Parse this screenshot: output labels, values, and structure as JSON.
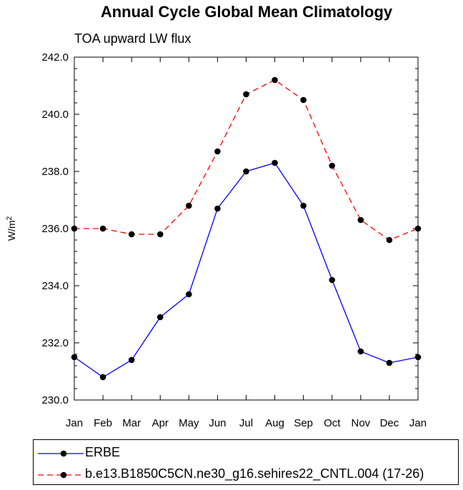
{
  "chart_data": {
    "type": "line",
    "title": "Annual Cycle Global Mean Climatology",
    "subtitle": "TOA upward LW flux",
    "ylabel": "W/m",
    "ylabel_sup": "2",
    "categories": [
      "Jan",
      "Feb",
      "Mar",
      "Apr",
      "May",
      "Jun",
      "Jul",
      "Aug",
      "Sep",
      "Oct",
      "Nov",
      "Dec",
      "Jan"
    ],
    "ylim": [
      230.0,
      242.0
    ],
    "yticks": [
      "230.0",
      "232.0",
      "234.0",
      "236.0",
      "238.0",
      "240.0",
      "242.0"
    ],
    "ytick_values": [
      230,
      232,
      234,
      236,
      238,
      240,
      242
    ],
    "grid": false,
    "legend_position": "bottom",
    "series": [
      {
        "name": "ERBE",
        "color": "#0000ff",
        "line_style": "solid",
        "values": [
          231.5,
          230.8,
          231.4,
          232.9,
          233.7,
          236.7,
          238.0,
          238.3,
          236.8,
          234.2,
          231.7,
          231.3,
          231.5
        ]
      },
      {
        "name": "b.e13.B1850C5CN.ne30_g16.sehires22_CNTL.004 (17-26)",
        "color": "#ff0000",
        "line_style": "dashed",
        "values": [
          236.0,
          236.0,
          235.8,
          235.8,
          236.8,
          238.7,
          240.7,
          241.2,
          240.5,
          238.2,
          236.3,
          235.6,
          236.0
        ]
      }
    ]
  }
}
